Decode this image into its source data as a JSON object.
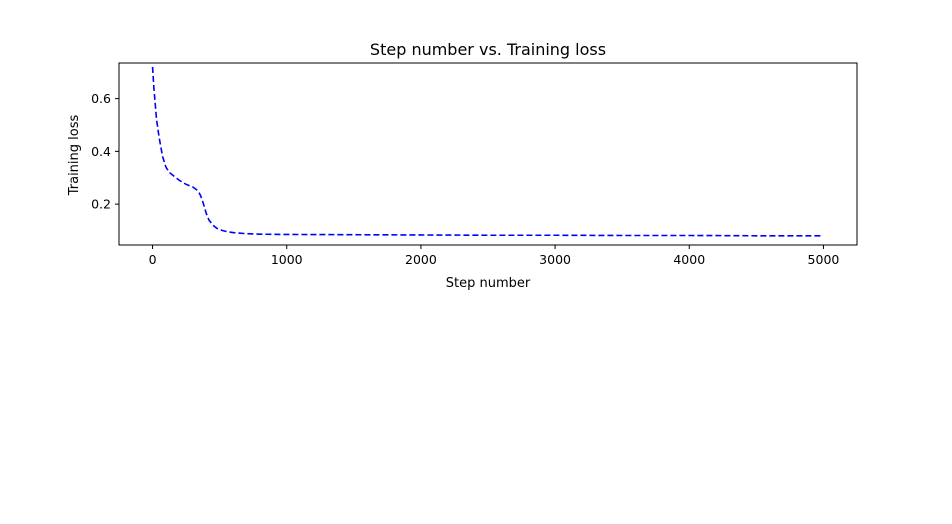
{
  "chart_data": {
    "type": "line",
    "title": "Step number vs. Training loss",
    "xlabel": "Step number",
    "ylabel": "Training loss",
    "xlim": [
      -250,
      5250
    ],
    "ylim": [
      0.045,
      0.735
    ],
    "xticks": [
      0,
      1000,
      2000,
      3000,
      4000,
      5000
    ],
    "yticks": [
      0.2,
      0.4,
      0.6
    ],
    "xtick_labels": [
      "0",
      "1000",
      "2000",
      "3000",
      "4000",
      "5000"
    ],
    "ytick_labels": [
      "0.2",
      "0.4",
      "0.6"
    ],
    "grid": false,
    "legend": "none",
    "series": [
      {
        "color": "#0000ff",
        "line_style": "dashed",
        "x": [
          0,
          10,
          20,
          30,
          50,
          75,
          100,
          125,
          150,
          200,
          250,
          300,
          340,
          360,
          380,
          400,
          420,
          450,
          480,
          520,
          560,
          600,
          700,
          800,
          1000,
          1500,
          2000,
          2500,
          3000,
          3500,
          4000,
          4500,
          5000
        ],
        "y": [
          0.72,
          0.64,
          0.58,
          0.52,
          0.45,
          0.38,
          0.34,
          0.32,
          0.31,
          0.29,
          0.275,
          0.265,
          0.25,
          0.23,
          0.2,
          0.165,
          0.14,
          0.12,
          0.108,
          0.1,
          0.095,
          0.092,
          0.088,
          0.086,
          0.085,
          0.084,
          0.083,
          0.082,
          0.082,
          0.081,
          0.081,
          0.08,
          0.08
        ]
      }
    ]
  }
}
